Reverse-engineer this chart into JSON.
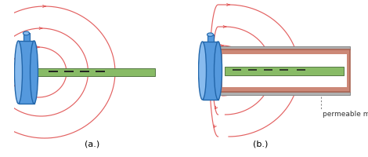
{
  "bg_color": "#ffffff",
  "field_line_color": "#e05050",
  "field_line_alpha": 0.9,
  "coil_body_color": "#5599dd",
  "coil_body_edge": "#2266aa",
  "coil_top_color": "#88bbee",
  "coil_connector_color": "#7aaed4",
  "green_bar_color": "#88bb66",
  "green_bar_edge": "#557744",
  "dashed_line_color": "#222222",
  "shield_fill_color": "#cc8877",
  "shield_edge_color": "#aa6655",
  "gray_plate_color": "#b0b0b0",
  "gray_plate_edge": "#888888",
  "label_a": "(a.)",
  "label_b": "(b.)",
  "annotation": "permeable material",
  "label_fontsize": 8,
  "annotation_fontsize": 6.5,
  "arrow_color": "#e05050"
}
